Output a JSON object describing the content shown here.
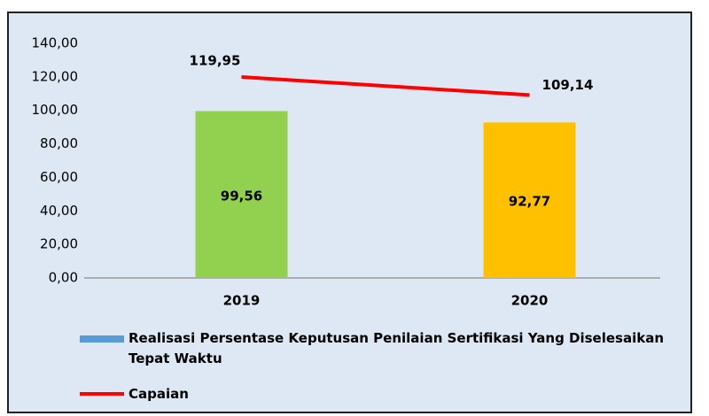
{
  "chart_data": {
    "type": "combo",
    "categories": [
      "2019",
      "2020"
    ],
    "ylim": [
      0,
      140
    ],
    "yticks": [
      {
        "value": 0,
        "label": "0,00"
      },
      {
        "value": 20,
        "label": "20,00"
      },
      {
        "value": 40,
        "label": "40,00"
      },
      {
        "value": 60,
        "label": "60,00"
      },
      {
        "value": 80,
        "label": "80,00"
      },
      {
        "value": 100,
        "label": "100,00"
      },
      {
        "value": 120,
        "label": "120,00"
      },
      {
        "value": 140,
        "label": "140,00"
      }
    ],
    "grid": false,
    "legend": "bottom",
    "series": [
      {
        "name": "Realisasi Persentase Keputusan Penilaian Sertifikasi Yang Diselesaikan Tepat Waktu",
        "type": "bar",
        "color": "#5b9bd5",
        "bar_colors": [
          "#92d050",
          "#ffc000"
        ],
        "values": [
          99.56,
          92.77
        ],
        "value_labels": [
          "99,56",
          "92,77"
        ]
      },
      {
        "name": "Capaian",
        "type": "line",
        "color": "#ff0000",
        "values": [
          119.95,
          109.14
        ],
        "value_labels": [
          "119,95",
          "109,14"
        ]
      }
    ]
  }
}
